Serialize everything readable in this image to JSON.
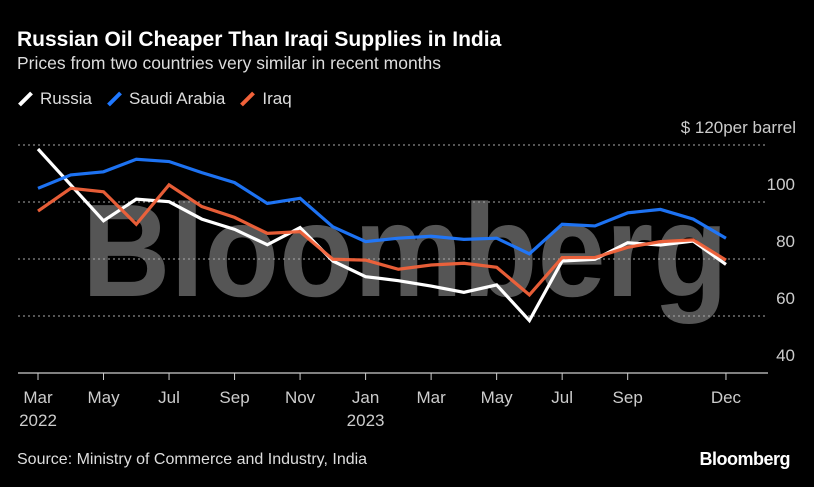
{
  "title": "Russian Oil Cheaper Than Iraqi Supplies in India",
  "subtitle": "Prices from two countries very similar in recent months",
  "source": "Source: Ministry of Commerce and Industry, India",
  "logo": "Bloomberg",
  "watermark": "Bloomberg",
  "chart_data": {
    "type": "line",
    "ylabel": "$ 120per barrel",
    "ylim": [
      40,
      120
    ],
    "yticks": [
      {
        "value": 120,
        "label": "$ 120per barrel"
      },
      {
        "value": 100,
        "label": "100"
      },
      {
        "value": 80,
        "label": "80"
      },
      {
        "value": 60,
        "label": "60"
      },
      {
        "value": 40,
        "label": "40"
      }
    ],
    "grid": true,
    "legend": "top-left",
    "x": [
      "2022-03",
      "2022-04",
      "2022-05",
      "2022-06",
      "2022-07",
      "2022-08",
      "2022-09",
      "2022-10",
      "2022-11",
      "2022-12",
      "2023-01",
      "2023-02",
      "2023-03",
      "2023-04",
      "2023-05",
      "2023-06",
      "2023-07",
      "2023-08",
      "2023-09",
      "2023-10",
      "2023-11",
      "2023-12"
    ],
    "xticks": [
      {
        "index": 0,
        "label": "Mar",
        "sub": "2022"
      },
      {
        "index": 2,
        "label": "May",
        "sub": ""
      },
      {
        "index": 4,
        "label": "Jul",
        "sub": ""
      },
      {
        "index": 6,
        "label": "Sep",
        "sub": ""
      },
      {
        "index": 8,
        "label": "Nov",
        "sub": ""
      },
      {
        "index": 10,
        "label": "Jan",
        "sub": "2023"
      },
      {
        "index": 12,
        "label": "Mar",
        "sub": ""
      },
      {
        "index": 14,
        "label": "May",
        "sub": ""
      },
      {
        "index": 16,
        "label": "Jul",
        "sub": ""
      },
      {
        "index": 18,
        "label": "Sep",
        "sub": ""
      },
      {
        "index": 21,
        "label": "Dec",
        "sub": ""
      }
    ],
    "series": [
      {
        "name": "Russia",
        "color": "#ffffff",
        "values": [
          118.6,
          106,
          93.4,
          101,
          100.1,
          94,
          90.4,
          85,
          91,
          79.3,
          73.8,
          72.4,
          70.5,
          68.3,
          70.9,
          58.4,
          79.3,
          79.9,
          85.7,
          84.9,
          86.3,
          78.1
        ]
      },
      {
        "name": "Saudi Arabia",
        "color": "#1f78ff",
        "values": [
          104.8,
          109.5,
          110.6,
          115,
          114.2,
          110.3,
          106.8,
          99.5,
          101.3,
          91.3,
          86.1,
          87.3,
          88,
          86.9,
          87.3,
          81.8,
          92.2,
          91.6,
          96.2,
          97.4,
          94,
          87.3
        ]
      },
      {
        "name": "Iraq",
        "color": "#f2623a",
        "values": [
          96.8,
          104.8,
          103.6,
          92.2,
          106,
          98.4,
          94.6,
          89,
          89.6,
          79.9,
          79.6,
          76.4,
          77.9,
          78.5,
          77.1,
          67.4,
          80.5,
          80.5,
          84.1,
          86.1,
          86.7,
          79.6
        ]
      }
    ]
  }
}
